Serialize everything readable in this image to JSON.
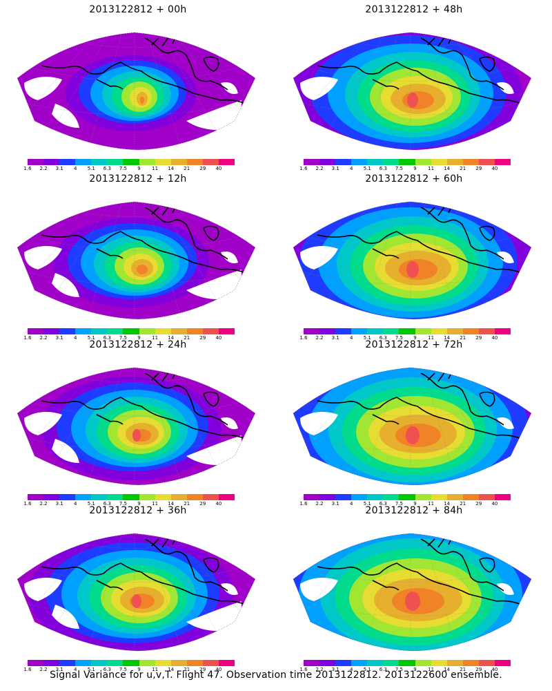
{
  "caption": "Signal Variance for u,v,T. Flight 47. Observation time 2013122812. 2013122600 ensemble.",
  "panels": [
    {
      "title": "2013122812 + 00h",
      "level": 0
    },
    {
      "title": "2013122812 + 48h",
      "level": 4
    },
    {
      "title": "2013122812 + 12h",
      "level": 1
    },
    {
      "title": "2013122812 + 60h",
      "level": 5
    },
    {
      "title": "2013122812 + 24h",
      "level": 2
    },
    {
      "title": "2013122812 + 72h",
      "level": 6
    },
    {
      "title": "2013122812 + 36h",
      "level": 3
    },
    {
      "title": "2013122812 + 84h",
      "level": 7
    }
  ],
  "colorbar": {
    "labels": [
      "1.6",
      "2.2",
      "3.1",
      "4",
      "5.1",
      "6.3",
      "7.5",
      "9",
      "11",
      "14",
      "21",
      "29",
      "40"
    ],
    "colors": [
      "#a000c8",
      "#8200dc",
      "#1e3cff",
      "#00a0ff",
      "#00c8c8",
      "#00dc8c",
      "#00c800",
      "#a0e632",
      "#e6dc32",
      "#e6af2d",
      "#f08228",
      "#f05050",
      "#f00082"
    ]
  },
  "field_colors": {
    "background": "#a000c8",
    "levels": [
      "#8200dc",
      "#1e3cff",
      "#00a0ff",
      "#00c8c8",
      "#00dc8c",
      "#a0e632",
      "#e6dc32",
      "#e6af2d",
      "#f08228",
      "#f05050"
    ]
  }
}
